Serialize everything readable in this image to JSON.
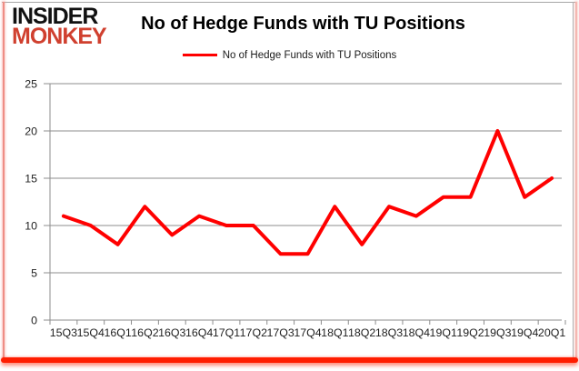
{
  "logo": {
    "line1": "INSIDER",
    "line2": "MONKEY",
    "line2_color": "#d0402f"
  },
  "header": {
    "title": "No of Hedge Funds with TU Positions"
  },
  "legend": {
    "label": "No of Hedge Funds with TU Positions",
    "marker_color": "#ff0000"
  },
  "chart_data": {
    "type": "line",
    "title": "No of Hedge Funds with TU Positions",
    "categories": [
      "15Q3",
      "15Q4",
      "16Q1",
      "16Q2",
      "16Q3",
      "16Q4",
      "17Q1",
      "17Q2",
      "17Q3",
      "17Q4",
      "18Q1",
      "18Q2",
      "18Q3",
      "18Q4",
      "19Q1",
      "19Q2",
      "19Q3",
      "19Q4",
      "20Q1"
    ],
    "series": [
      {
        "name": "No of Hedge Funds with TU Positions",
        "color": "#ff0000",
        "values": [
          11,
          10,
          8,
          12,
          9,
          11,
          10,
          10,
          7,
          7,
          12,
          8,
          12,
          11,
          13,
          13,
          20,
          13,
          15
        ]
      }
    ],
    "ylim": [
      0,
      25
    ],
    "yticks": [
      0,
      5,
      10,
      15,
      20,
      25
    ],
    "grid": true,
    "legend_position": "top",
    "xlabel": "",
    "ylabel": ""
  },
  "colors": {
    "grid": "#8c8c8c",
    "axis": "#8c8c8c",
    "tick_text": "#1f1f1f",
    "line": "#ff0000",
    "border_red": "#ff1d00",
    "border_pink": "#f5b7b1",
    "border_gray": "#a6a6a6"
  }
}
